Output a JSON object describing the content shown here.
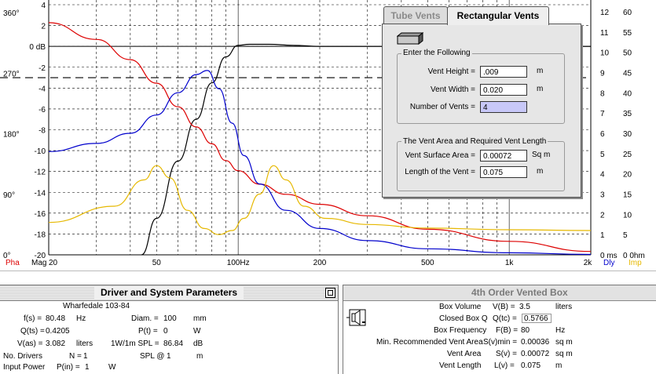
{
  "chart_data": {
    "type": "line",
    "xscale": "log",
    "xlim": [
      20,
      2000
    ],
    "x_ticks": [
      "20",
      "50",
      "100Hz",
      "200",
      "500",
      "1k",
      "2k"
    ],
    "x_tick_values": [
      20,
      50,
      100,
      200,
      500,
      1000,
      2000
    ],
    "left_axis_label": "Mag",
    "left_phase_label": "Pha",
    "ylim_mag": [
      -20,
      4
    ],
    "mag_ticks": [
      "4",
      "2",
      "0 dB",
      "-2",
      "-4",
      "-6",
      "-8",
      "-10",
      "-12",
      "-14",
      "-16",
      "-18",
      "-20"
    ],
    "mag_tick_values": [
      4,
      2,
      0,
      -2,
      -4,
      -6,
      -8,
      -10,
      -12,
      -14,
      -16,
      -18,
      -20
    ],
    "phase_ticks": [
      "360°",
      "270°",
      "180°",
      "90°",
      "0°"
    ],
    "phase_tick_values": [
      360,
      270,
      180,
      90,
      0
    ],
    "right_dly_ticks": [
      "12",
      "11",
      "10",
      "9",
      "8",
      "7",
      "6",
      "5",
      "4",
      "3",
      "2",
      "1",
      "0 ms"
    ],
    "right_dly_values": [
      12,
      11,
      10,
      9,
      8,
      7,
      6,
      5,
      4,
      3,
      2,
      1,
      0
    ],
    "right_imp_ticks": [
      "60",
      "55",
      "50",
      "45",
      "40",
      "35",
      "30",
      "25",
      "20",
      "15",
      "10",
      "5",
      "0 0hm"
    ],
    "right_imp_values": [
      60,
      55,
      50,
      45,
      40,
      35,
      30,
      25,
      20,
      15,
      10,
      5,
      0
    ],
    "dly_label": "Dly",
    "imp_label": "Imp",
    "dashed_ref_mag": -3,
    "grid": true,
    "series": [
      {
        "color": "#000000",
        "axis": "mag",
        "x": [
          44,
          50,
          60,
          70,
          80,
          90,
          100,
          110,
          130,
          160,
          200,
          400,
          1000,
          2000
        ],
        "y": [
          -20,
          -16.5,
          -11,
          -7,
          -3.5,
          -1,
          0.1,
          0.2,
          0.2,
          0.1,
          0,
          0,
          0,
          0
        ]
      },
      {
        "color": "#dd0000",
        "axis": "phase",
        "x": [
          20,
          30,
          40,
          50,
          60,
          70,
          80,
          90,
          100,
          120,
          150,
          200,
          300,
          500,
          1000,
          2000
        ],
        "y": [
          345,
          320,
          290,
          255,
          220,
          190,
          165,
          140,
          125,
          105,
          90,
          75,
          58,
          38,
          20,
          5
        ]
      },
      {
        "color": "#0000cc",
        "axis": "dly",
        "x": [
          20,
          30,
          40,
          50,
          60,
          70,
          77,
          85,
          95,
          105,
          120,
          150,
          200,
          300,
          500,
          1000,
          2000
        ],
        "y": [
          5.1,
          5.5,
          6.0,
          6.9,
          8.0,
          8.9,
          9.1,
          8.2,
          6.5,
          4.9,
          3.5,
          2.2,
          1.3,
          0.7,
          0.3,
          0.1,
          0.02
        ]
      },
      {
        "color": "#e6b800",
        "axis": "imp",
        "x": [
          20,
          35,
          45,
          50,
          56,
          65,
          75,
          85,
          95,
          105,
          120,
          135,
          150,
          175,
          210,
          300,
          500,
          1000,
          2000
        ],
        "y": [
          8,
          12,
          18.5,
          22,
          19,
          11,
          6.5,
          5,
          6,
          9,
          15,
          22,
          18.5,
          12,
          9,
          7.5,
          6.6,
          6.2,
          6
        ]
      }
    ]
  },
  "dialog": {
    "tab_tube": "Tube Vents",
    "tab_rect": "Rectangular Vents",
    "group1_title": "Enter the Following",
    "vent_height_label": "Vent Height =",
    "vent_height_value": ".009",
    "vent_height_unit": "m",
    "vent_width_label": "Vent Width =",
    "vent_width_value": "0.020",
    "vent_width_unit": "m",
    "num_vents_label": "Number of Vents =",
    "num_vents_value": "4",
    "group2_title": "The Vent Area and Required Vent Length",
    "surface_area_label": "Vent Surface Area =",
    "surface_area_value": "0.00072",
    "surface_area_unit": "Sq m",
    "length_label": "Length of the Vent =",
    "length_value": "0.075",
    "length_unit": "m"
  },
  "left_panel": {
    "title": "Driver and System Parameters",
    "driver_name": "Wharfedale 103-84",
    "fs_label": "f(s) =",
    "fs_value": "80.48",
    "fs_unit": "Hz",
    "diam_label": "Diam. =",
    "diam_value": "100",
    "diam_unit": "mm",
    "qts_label": "Q(ts) =",
    "qts_value": "0.4205",
    "pt_label": "P(t) =",
    "pt_value": "0",
    "pt_unit": "W",
    "vas_label": "V(as) =",
    "vas_value": "3.082",
    "vas_unit": "liters",
    "spl_label": "1W/1m SPL =",
    "spl_value": "86.84",
    "spl_unit": "dB",
    "nodrivers_label": "No. Drivers",
    "n_label": "N =",
    "n_value": "1",
    "splat_label": "SPL @",
    "splat_value": "1",
    "splat_unit": "m",
    "input_power_label": "Input Power",
    "pin_label": "P(in) =",
    "pin_value": "1",
    "pin_unit": "W"
  },
  "right_panel": {
    "title": "4th Order Vented Box",
    "box_volume_label": "Box Volume",
    "vb_label": "V(B) =",
    "vb_value": "3.5",
    "vb_unit": "liters",
    "closed_q_label": "Closed Box Q",
    "qtc_label": "Q(tc) =",
    "qtc_value": "0.5766",
    "box_freq_label": "Box Frequency",
    "fb_label": "F(B) =",
    "fb_value": "80",
    "fb_unit": "Hz",
    "min_vent_label": "Min. Recommended Vent Area",
    "svmin_label": "S(v)min =",
    "svmin_value": "0.00036",
    "svmin_unit": "sq m",
    "vent_area_label": "Vent Area",
    "sv_label": "S(v) =",
    "sv_value": "0.00072",
    "sv_unit": "sq m",
    "vent_length_label": "Vent Length",
    "lv_label": "L(v) =",
    "lv_value": "0.075",
    "lv_unit": "m"
  }
}
